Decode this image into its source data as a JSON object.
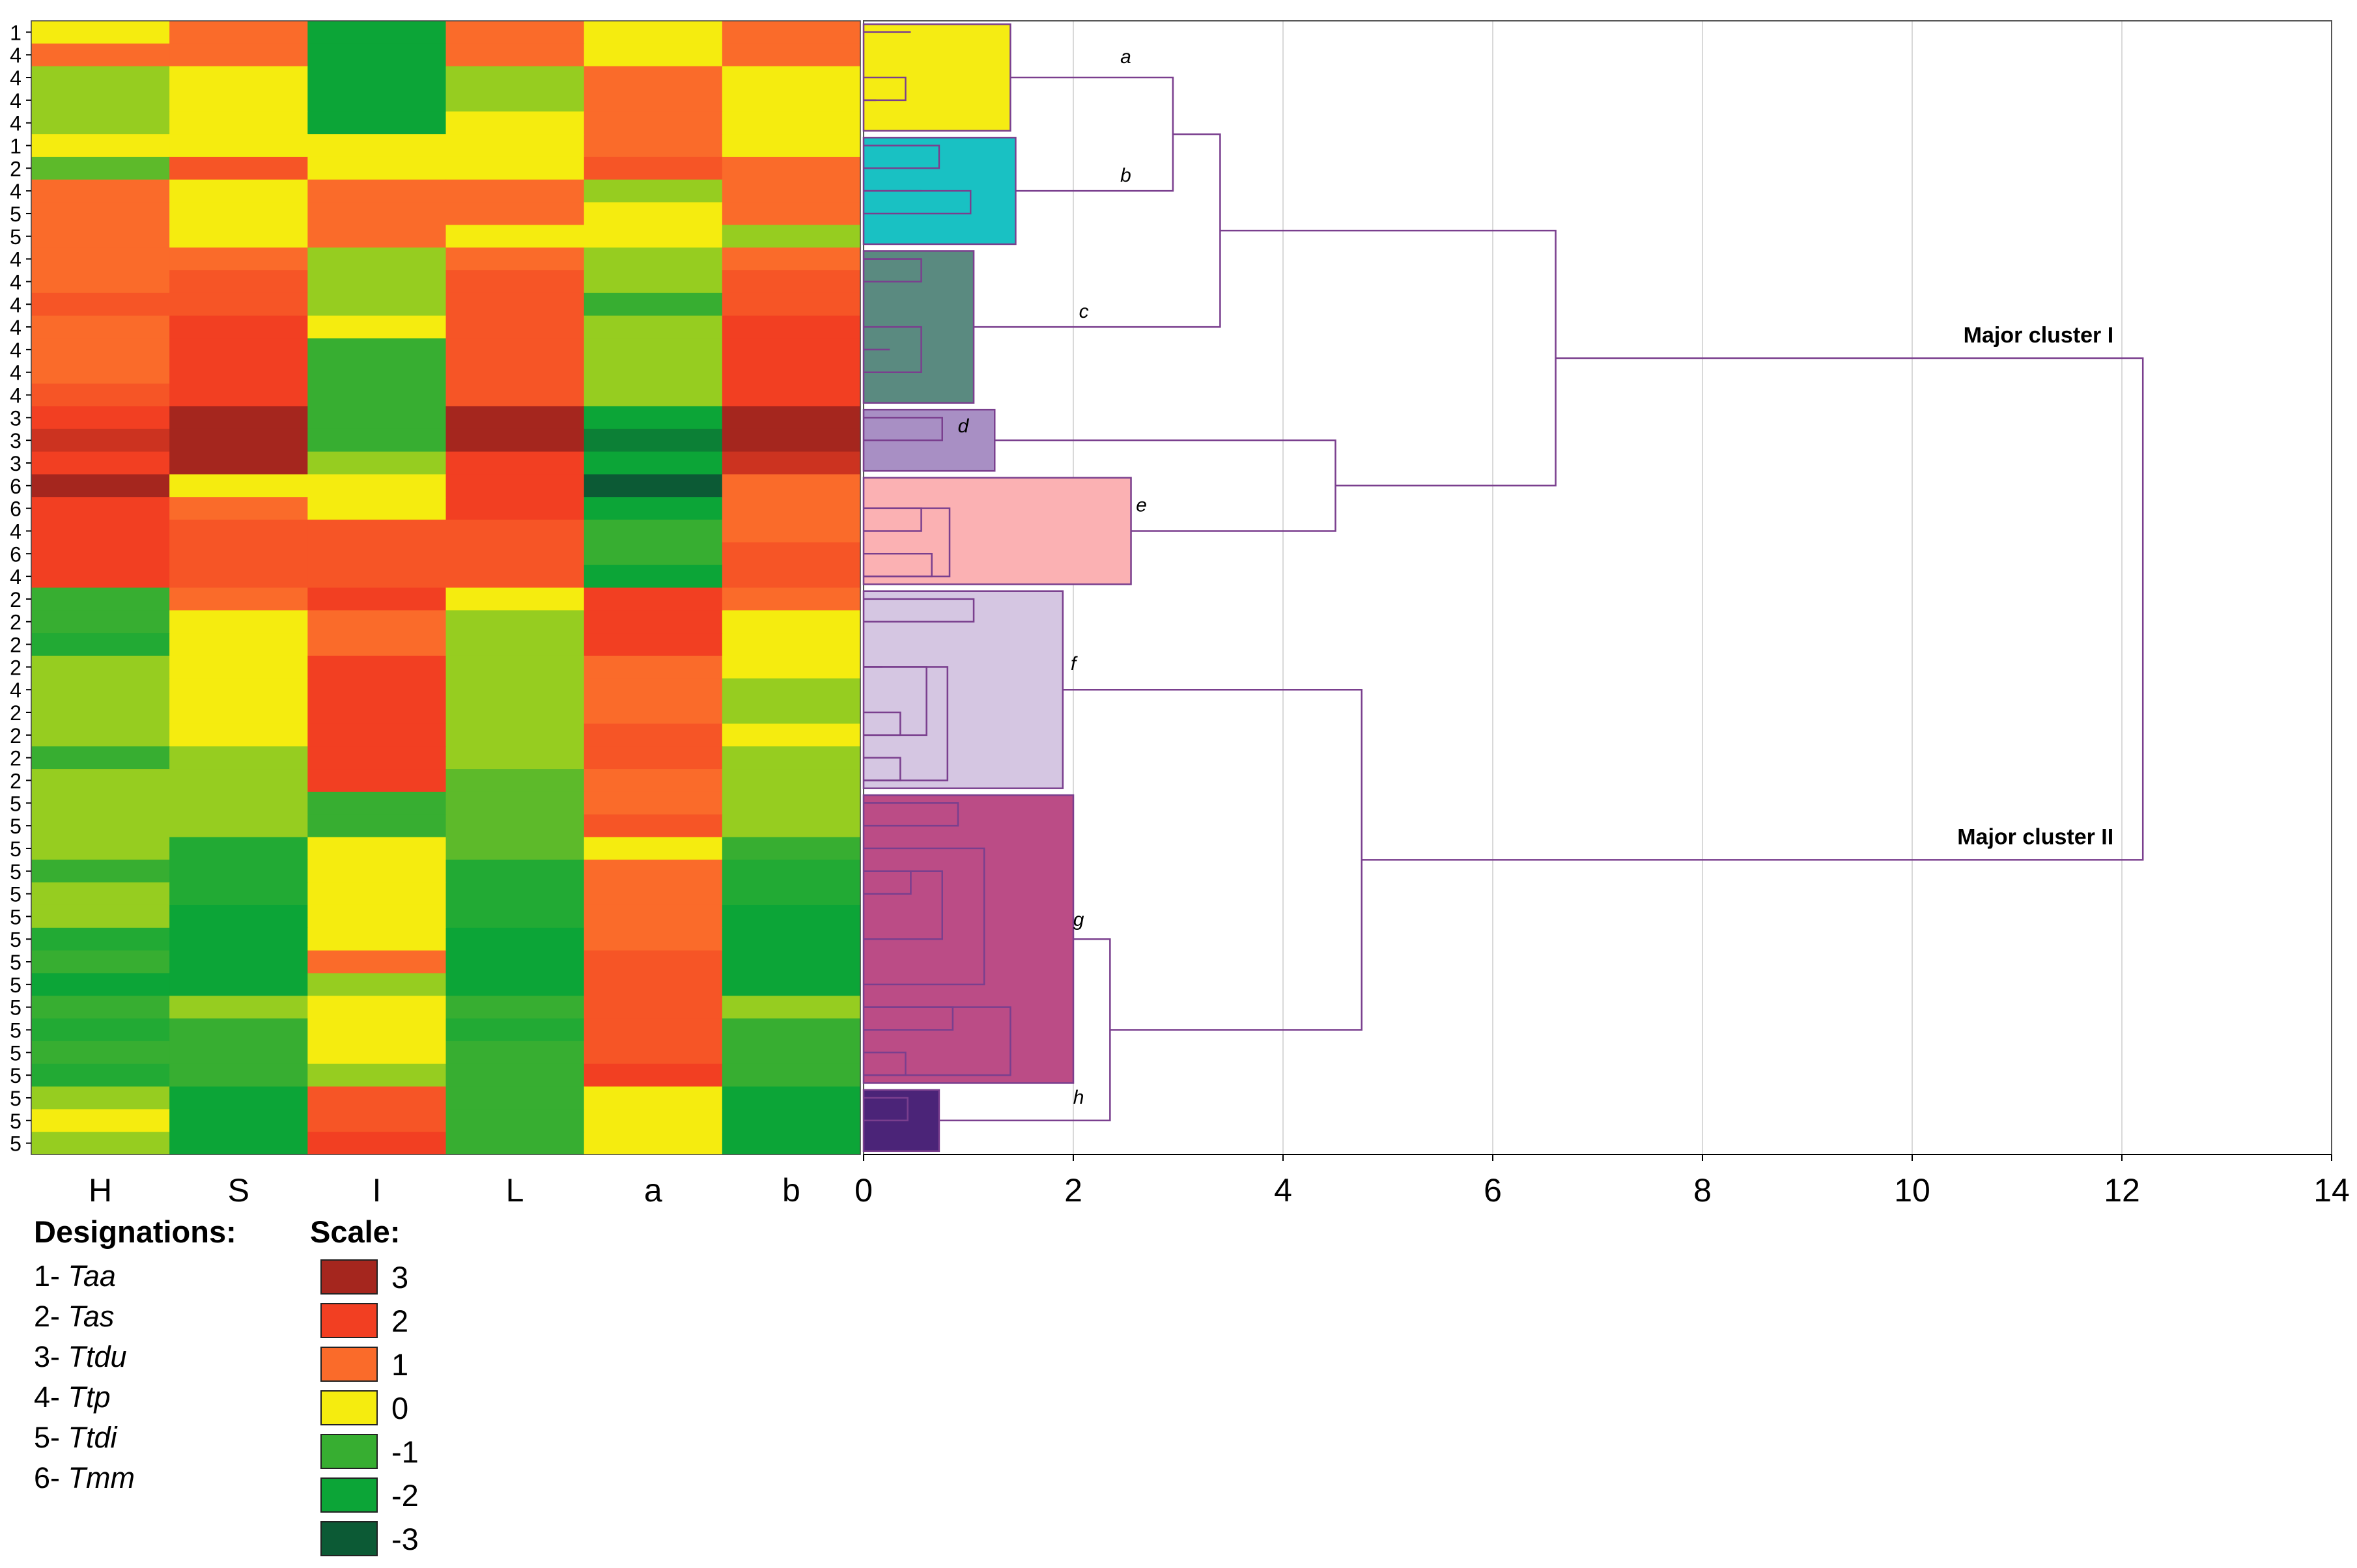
{
  "chart_data": {
    "type": "heatmap",
    "heatmap": {
      "columns": [
        "H",
        "S",
        "I",
        "L",
        "a",
        "b"
      ],
      "row_labels": [
        "1",
        "4",
        "4",
        "4",
        "4",
        "1",
        "2",
        "4",
        "5",
        "5",
        "4",
        "4",
        "4",
        "4",
        "4",
        "4",
        "4",
        "3",
        "3",
        "3",
        "6",
        "6",
        "4",
        "6",
        "4",
        "2",
        "2",
        "2",
        "2",
        "4",
        "2",
        "2",
        "2",
        "2",
        "5",
        "5",
        "5",
        "5",
        "5",
        "5",
        "5",
        "5",
        "5",
        "5",
        "5",
        "5",
        "5",
        "5",
        "5",
        "5"
      ],
      "values": [
        [
          0,
          1,
          -2,
          1,
          0,
          1
        ],
        [
          1,
          1,
          -2,
          1,
          0,
          1
        ],
        [
          -0.5,
          0,
          -2,
          -0.5,
          1,
          0
        ],
        [
          -0.5,
          0,
          -2,
          -0.5,
          1,
          0
        ],
        [
          -0.5,
          0,
          -2,
          0,
          1,
          0
        ],
        [
          0,
          0,
          0,
          0,
          1,
          0
        ],
        [
          -0.8,
          1.5,
          0,
          0,
          1.5,
          1
        ],
        [
          1,
          0,
          1,
          1,
          -0.5,
          1
        ],
        [
          1,
          0,
          1,
          1,
          0,
          1
        ],
        [
          1,
          0,
          1,
          0,
          0,
          -0.5
        ],
        [
          1,
          1,
          -0.5,
          1,
          -0.5,
          1
        ],
        [
          1,
          1.5,
          -0.5,
          1.5,
          -0.5,
          1.5
        ],
        [
          1.5,
          1.5,
          -0.5,
          1.5,
          -1,
          1.5
        ],
        [
          1,
          2,
          0,
          1.5,
          -0.5,
          2
        ],
        [
          1,
          2,
          -1,
          1.5,
          -0.5,
          2
        ],
        [
          1,
          2,
          -1,
          1.5,
          -0.5,
          2
        ],
        [
          1.5,
          2,
          -1,
          1.5,
          -0.5,
          2
        ],
        [
          2,
          3,
          -1,
          3,
          -2,
          3
        ],
        [
          2.5,
          3,
          -1,
          3,
          -2.5,
          3
        ],
        [
          2,
          3,
          -0.5,
          2,
          -2,
          2.5
        ],
        [
          3,
          0,
          0,
          2,
          -3,
          1
        ],
        [
          2,
          1,
          0,
          2,
          -2,
          1
        ],
        [
          2,
          1.5,
          1.5,
          1.5,
          -1,
          1
        ],
        [
          2,
          1.5,
          1.5,
          1.5,
          -1,
          1.5
        ],
        [
          2,
          1.5,
          1.5,
          1.5,
          -2,
          1.5
        ],
        [
          -1,
          1,
          2,
          0,
          2,
          1
        ],
        [
          -1,
          0,
          1,
          -0.5,
          2,
          0
        ],
        [
          -1.5,
          0,
          1,
          -0.5,
          2,
          0
        ],
        [
          -0.5,
          0,
          2,
          -0.5,
          1,
          0
        ],
        [
          -0.5,
          0,
          2,
          -0.5,
          1,
          -0.5
        ],
        [
          -0.5,
          0,
          2,
          -0.5,
          1,
          -0.5
        ],
        [
          -0.5,
          0,
          2,
          -0.5,
          1.5,
          0
        ],
        [
          -1,
          -0.5,
          2,
          -0.5,
          1.5,
          -0.5
        ],
        [
          -0.5,
          -0.5,
          2,
          -0.8,
          1,
          -0.5
        ],
        [
          -0.5,
          -0.5,
          -1,
          -0.8,
          1,
          -0.5
        ],
        [
          -0.5,
          -0.5,
          -1,
          -0.8,
          1.5,
          -0.5
        ],
        [
          -0.5,
          -1.5,
          0,
          -0.8,
          0,
          -1
        ],
        [
          -1,
          -1.5,
          0,
          -1.5,
          1,
          -1.5
        ],
        [
          -0.5,
          -1.5,
          0,
          -1.5,
          1,
          -1.5
        ],
        [
          -0.5,
          -2,
          0,
          -1.5,
          1,
          -2
        ],
        [
          -1.5,
          -2,
          0,
          -2,
          1,
          -2
        ],
        [
          -1,
          -2,
          1,
          -2,
          1.5,
          -2
        ],
        [
          -2,
          -2,
          -0.5,
          -2,
          1.5,
          -2
        ],
        [
          -1,
          -0.5,
          0,
          -1,
          1.5,
          -0.5
        ],
        [
          -1.5,
          -1,
          0,
          -1.5,
          1.5,
          -1
        ],
        [
          -1,
          -1,
          0,
          -1,
          1.5,
          -1
        ],
        [
          -1.5,
          -1,
          -0.5,
          -1,
          2,
          -1
        ],
        [
          -0.5,
          -2,
          1.5,
          -1,
          0,
          -2
        ],
        [
          0,
          -2,
          1.5,
          -1,
          0,
          -2
        ],
        [
          -0.5,
          -2,
          2,
          -1,
          0,
          -2
        ]
      ]
    },
    "dendrogram": {
      "x_axis": {
        "ticks": [
          "0",
          "2",
          "4",
          "6",
          "8",
          "10",
          "12",
          "14"
        ],
        "range": [
          0,
          14
        ]
      },
      "cluster_labels": [
        "a",
        "b",
        "c",
        "d",
        "e",
        "f",
        "g",
        "h"
      ],
      "major_labels": [
        "Major cluster I",
        "Major cluster II"
      ],
      "cluster_colors": [
        "#F5EC13",
        "#19C1C3",
        "#5A8A80",
        "#A88FC4",
        "#FBB1B3",
        "#D5C6E2",
        "#BB4C86",
        "#4B2478"
      ],
      "clusters": [
        {
          "id": "a",
          "rows": [
            0,
            5
          ],
          "height": 1.4,
          "subs": [
            {
              "rows": [
                0,
                1
              ],
              "h": 0.45
            },
            {
              "rows": [
                2,
                4
              ],
              "h": 0.4
            },
            {
              "rows": [
                3,
                4
              ],
              "h": 0.12
            }
          ]
        },
        {
          "id": "b",
          "rows": [
            5,
            10
          ],
          "height": 1.45,
          "subs": [
            {
              "rows": [
                5,
                7
              ],
              "h": 0.72
            },
            {
              "rows": [
                7,
                9
              ],
              "h": 1.02
            },
            {
              "rows": [
                7,
                8
              ],
              "h": 0.55
            }
          ]
        },
        {
          "id": "c",
          "rows": [
            10,
            17
          ],
          "height": 1.05,
          "subs": [
            {
              "rows": [
                10,
                11
              ],
              "h": 0.25
            },
            {
              "rows": [
                10,
                12
              ],
              "h": 0.55
            },
            {
              "rows": [
                13,
                16
              ],
              "h": 0.55
            },
            {
              "rows": [
                14,
                15
              ],
              "h": 0.25
            }
          ]
        },
        {
          "id": "d",
          "rows": [
            17,
            20
          ],
          "height": 1.25,
          "subs": [
            {
              "rows": [
                17,
                19
              ],
              "h": 0.75
            }
          ]
        },
        {
          "id": "e",
          "rows": [
            20,
            25
          ],
          "height": 2.55,
          "subs": [
            {
              "rows": [
                21,
                25
              ],
              "h": 0.82
            },
            {
              "rows": [
                21,
                23
              ],
              "h": 0.55
            },
            {
              "rows": [
                23,
                25
              ],
              "h": 0.65
            }
          ]
        },
        {
          "id": "f",
          "rows": [
            25,
            34
          ],
          "height": 1.9,
          "subs": [
            {
              "rows": [
                25,
                27
              ],
              "h": 1.05
            },
            {
              "rows": [
                26,
                27
              ],
              "h": 0.38
            },
            {
              "rows": [
                28,
                34
              ],
              "h": 0.8
            },
            {
              "rows": [
                28,
                29
              ],
              "h": 0.18
            },
            {
              "rows": [
                28,
                32
              ],
              "h": 0.6
            },
            {
              "rows": [
                30,
                32
              ],
              "h": 0.35
            },
            {
              "rows": [
                32,
                34
              ],
              "h": 0.35
            }
          ]
        },
        {
          "id": "g",
          "rows": [
            34,
            47
          ],
          "height": 2.0,
          "subs": [
            {
              "rows": [
                34,
                36
              ],
              "h": 0.9
            },
            {
              "rows": [
                34,
                35
              ],
              "h": 0.45
            },
            {
              "rows": [
                36,
                43
              ],
              "h": 1.15
            },
            {
              "rows": [
                37,
                39
              ],
              "h": 0.45
            },
            {
              "rows": [
                37,
                41
              ],
              "h": 0.75
            },
            {
              "rows": [
                43,
                47
              ],
              "h": 1.4
            },
            {
              "rows": [
                43,
                45
              ],
              "h": 0.85
            },
            {
              "rows": [
                45,
                47
              ],
              "h": 0.4
            }
          ]
        },
        {
          "id": "h",
          "rows": [
            47,
            50
          ],
          "height": 0.72,
          "subs": [
            {
              "rows": [
                47,
                49
              ],
              "h": 0.42
            }
          ]
        }
      ],
      "merges": [
        {
          "between": [
            "a",
            "b"
          ],
          "height": 2.95
        },
        {
          "between": [
            "ab",
            "c"
          ],
          "height": 3.4
        },
        {
          "between": [
            "d",
            "e"
          ],
          "height": 4.5
        },
        {
          "between": [
            "abc",
            "de"
          ],
          "height": 6.6
        },
        {
          "between": [
            "g",
            "h"
          ],
          "height": 2.35
        },
        {
          "between": [
            "f",
            "gh"
          ],
          "height": 4.75
        },
        {
          "between": [
            "I",
            "II"
          ],
          "height": 12.2
        }
      ]
    }
  },
  "legend": {
    "designations_title": "Designations:",
    "designations": [
      {
        "code": "1-",
        "name": "Taa"
      },
      {
        "code": "2-",
        "name": "Tas"
      },
      {
        "code": "3-",
        "name": "Ttdu"
      },
      {
        "code": "4-",
        "name": "Ttp"
      },
      {
        "code": "5-",
        "name": "Ttdi"
      },
      {
        "code": "6-",
        "name": "Tmm"
      }
    ],
    "scale_title": "Scale:",
    "scale": [
      {
        "label": "3",
        "value": 3,
        "color": "#A5261E"
      },
      {
        "label": "2",
        "value": 2,
        "color": "#F23F22"
      },
      {
        "label": "1",
        "value": 1,
        "color": "#FA6B2A"
      },
      {
        "label": "0",
        "value": 0,
        "color": "#F5EC0F"
      },
      {
        "label": "-1",
        "value": -1,
        "color": "#37AE31"
      },
      {
        "label": "-2",
        "value": -2,
        "color": "#0CA537"
      },
      {
        "label": "-3",
        "value": -3,
        "color": "#0C5A35"
      }
    ]
  },
  "colors": {
    "tree_line": "#7A3F8E",
    "grid": "#D9D9D9",
    "axis": "#000000"
  }
}
